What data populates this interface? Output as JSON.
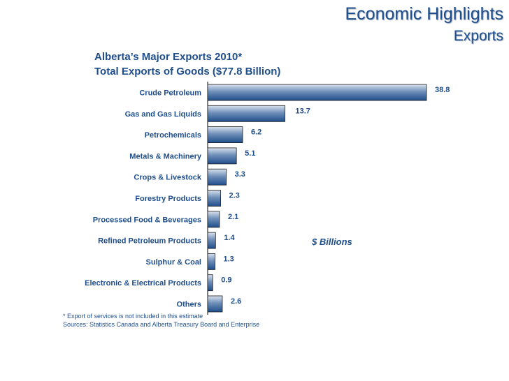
{
  "header": {
    "title": "Economic Highlights",
    "subtitle": "Exports"
  },
  "chart_data": {
    "type": "bar",
    "orientation": "horizontal",
    "title": "Alberta’s Major Exports 2010*",
    "subtitle": "Total Exports of Goods ($77.8 Billion)",
    "unit_label": "$ Billions",
    "categories": [
      "Crude Petroleum",
      "Gas and Gas Liquids",
      "Petrochemicals",
      "Metals & Machinery",
      "Crops & Livestock",
      "Forestry  Products",
      "Processed Food & Beverages",
      "Refined Petroleum Products",
      "Sulphur & Coal",
      "Electronic & Electrical  Products",
      "Others"
    ],
    "values": [
      38.8,
      13.7,
      6.2,
      5.1,
      3.3,
      2.3,
      2.1,
      1.4,
      1.3,
      0.9,
      2.6
    ],
    "value_labels": [
      "38.8",
      "13.7",
      "6.2",
      "5.1",
      "3.3",
      "2.3",
      "2.1",
      "1.4",
      "1.3",
      "0.9",
      "2.6"
    ],
    "xlim": [
      0,
      40
    ],
    "grid": false,
    "legend": "none",
    "bar_color": "#1f4e8c",
    "text_color": "#1f4e8c"
  },
  "footnotes": {
    "note": "* Export of services is not included in this estimate",
    "sources": "Sources:  Statistics Canada and Alberta Treasury Board and Enterprise"
  }
}
